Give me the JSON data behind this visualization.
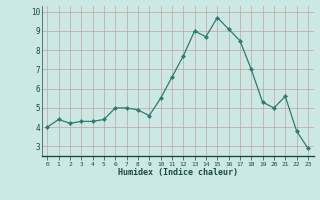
{
  "x": [
    0,
    1,
    2,
    3,
    4,
    5,
    6,
    7,
    8,
    9,
    10,
    11,
    12,
    13,
    14,
    15,
    16,
    17,
    18,
    19,
    20,
    21,
    22,
    23
  ],
  "y": [
    4.0,
    4.4,
    4.2,
    4.3,
    4.3,
    4.4,
    5.0,
    5.0,
    4.9,
    4.6,
    5.5,
    6.6,
    7.7,
    9.0,
    8.7,
    9.7,
    9.1,
    8.5,
    7.0,
    5.3,
    5.0,
    5.6,
    3.8,
    2.9
  ],
  "xlabel": "Humidex (Indice chaleur)",
  "ylim": [
    2.5,
    10.3
  ],
  "xlim": [
    -0.5,
    23.5
  ],
  "line_color": "#2d7d6e",
  "marker_color": "#2d7d6e",
  "bg_color": "#cce8e4",
  "grid_color": "#c8a0a0",
  "axis_color": "#1a4a40",
  "yticks": [
    3,
    4,
    5,
    6,
    7,
    8,
    9,
    10
  ],
  "xticks": [
    0,
    1,
    2,
    3,
    4,
    5,
    6,
    7,
    8,
    9,
    10,
    11,
    12,
    13,
    14,
    15,
    16,
    17,
    18,
    19,
    20,
    21,
    22,
    23
  ]
}
